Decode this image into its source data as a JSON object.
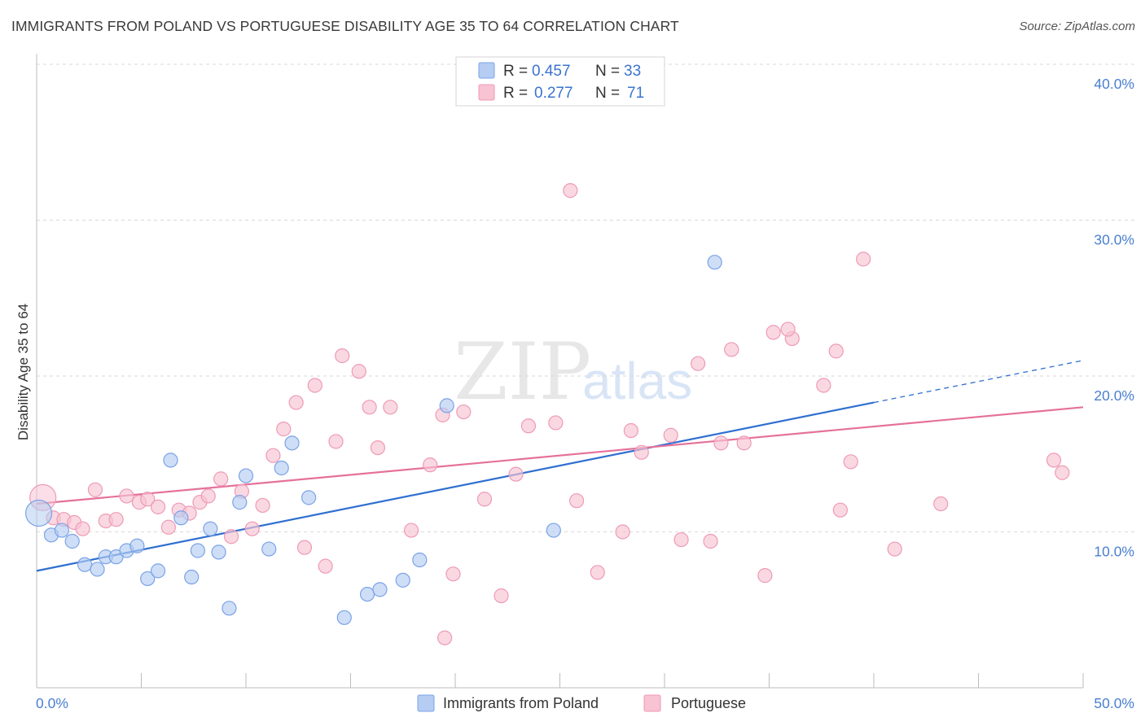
{
  "title": "IMMIGRANTS FROM POLAND VS PORTUGUESE DISABILITY AGE 35 TO 64 CORRELATION CHART",
  "source": "Source: ZipAtlas.com",
  "watermark": {
    "zip": "ZIP",
    "atlas": "atlas"
  },
  "legend": {
    "poland": {
      "r_label": "R = ",
      "r_value": "0.457",
      "n_label": "N = ",
      "n_value": "33"
    },
    "portuguese": {
      "r_label": "R = ",
      "r_value": "0.277",
      "n_label": "N = ",
      "n_value": "71"
    }
  },
  "colors": {
    "poland_fill": "#b5cdf3",
    "poland_stroke": "#7aa3e6",
    "poland_line": "#2f6fd0",
    "portuguese_fill": "#f8c3d3",
    "portuguese_stroke": "#ee9ab6",
    "portuguese_line": "#e5719a",
    "grid": "#d9d9d9",
    "axis_text": "#4a7fd0"
  },
  "chart_data": {
    "type": "scatter",
    "title": "IMMIGRANTS FROM POLAND VS PORTUGUESE DISABILITY AGE 35 TO 64 CORRELATION CHART",
    "xlabel": "",
    "ylabel": "Disability Age 35 to 64",
    "xlim": [
      0,
      50
    ],
    "ylim": [
      0,
      42
    ],
    "x_tick_labels": [
      "0.0%",
      "50.0%"
    ],
    "y_ticks": [
      10,
      20,
      30,
      40
    ],
    "y_tick_labels": [
      "10.0%",
      "20.0%",
      "30.0%",
      "40.0%"
    ],
    "grid": true,
    "legend_position": "top-center",
    "series": [
      {
        "name": "Immigrants from Poland",
        "r": 0.457,
        "n": 33,
        "trend": {
          "x": [
            0,
            40
          ],
          "y": [
            7.5,
            18.3
          ],
          "dashed_to": [
            50,
            21.0
          ]
        },
        "points": [
          {
            "x": 0.1,
            "y": 11.2,
            "big": true
          },
          {
            "x": 0.7,
            "y": 9.8
          },
          {
            "x": 1.2,
            "y": 10.1
          },
          {
            "x": 1.7,
            "y": 9.4
          },
          {
            "x": 2.3,
            "y": 7.9
          },
          {
            "x": 2.9,
            "y": 7.6
          },
          {
            "x": 3.3,
            "y": 8.4
          },
          {
            "x": 3.8,
            "y": 8.4
          },
          {
            "x": 4.3,
            "y": 8.8
          },
          {
            "x": 4.8,
            "y": 9.1
          },
          {
            "x": 5.3,
            "y": 7.0
          },
          {
            "x": 5.8,
            "y": 7.5
          },
          {
            "x": 6.4,
            "y": 14.6
          },
          {
            "x": 6.9,
            "y": 10.9
          },
          {
            "x": 7.4,
            "y": 7.1
          },
          {
            "x": 7.7,
            "y": 8.8
          },
          {
            "x": 8.3,
            "y": 10.2
          },
          {
            "x": 8.7,
            "y": 8.7
          },
          {
            "x": 9.2,
            "y": 5.1
          },
          {
            "x": 9.7,
            "y": 11.9
          },
          {
            "x": 10.0,
            "y": 13.6
          },
          {
            "x": 11.1,
            "y": 8.9
          },
          {
            "x": 11.7,
            "y": 14.1
          },
          {
            "x": 12.2,
            "y": 15.7
          },
          {
            "x": 13.0,
            "y": 12.2
          },
          {
            "x": 14.7,
            "y": 4.5
          },
          {
            "x": 15.8,
            "y": 6.0
          },
          {
            "x": 16.4,
            "y": 6.3
          },
          {
            "x": 17.5,
            "y": 6.9
          },
          {
            "x": 18.3,
            "y": 8.2
          },
          {
            "x": 19.6,
            "y": 18.1
          },
          {
            "x": 24.7,
            "y": 10.1
          },
          {
            "x": 32.4,
            "y": 27.3
          }
        ]
      },
      {
        "name": "Portuguese",
        "r": 0.277,
        "n": 71,
        "trend": {
          "x": [
            0,
            50
          ],
          "y": [
            11.8,
            18.0
          ]
        },
        "points": [
          {
            "x": 0.3,
            "y": 12.2,
            "big": true
          },
          {
            "x": 0.8,
            "y": 10.9
          },
          {
            "x": 1.3,
            "y": 10.8
          },
          {
            "x": 1.8,
            "y": 10.6
          },
          {
            "x": 2.2,
            "y": 10.2
          },
          {
            "x": 2.8,
            "y": 12.7
          },
          {
            "x": 3.3,
            "y": 10.7
          },
          {
            "x": 3.8,
            "y": 10.8
          },
          {
            "x": 4.3,
            "y": 12.3
          },
          {
            "x": 4.9,
            "y": 11.9
          },
          {
            "x": 5.3,
            "y": 12.1
          },
          {
            "x": 5.8,
            "y": 11.6
          },
          {
            "x": 6.3,
            "y": 10.3
          },
          {
            "x": 6.8,
            "y": 11.4
          },
          {
            "x": 7.3,
            "y": 11.2
          },
          {
            "x": 7.8,
            "y": 11.9
          },
          {
            "x": 8.2,
            "y": 12.3
          },
          {
            "x": 8.8,
            "y": 13.4
          },
          {
            "x": 9.3,
            "y": 9.7
          },
          {
            "x": 9.8,
            "y": 12.6
          },
          {
            "x": 10.3,
            "y": 10.2
          },
          {
            "x": 10.8,
            "y": 11.7
          },
          {
            "x": 11.3,
            "y": 14.9
          },
          {
            "x": 11.8,
            "y": 16.6
          },
          {
            "x": 12.4,
            "y": 18.3
          },
          {
            "x": 12.8,
            "y": 9.0
          },
          {
            "x": 13.3,
            "y": 19.4
          },
          {
            "x": 13.8,
            "y": 7.8
          },
          {
            "x": 14.3,
            "y": 15.8
          },
          {
            "x": 14.6,
            "y": 21.3
          },
          {
            "x": 15.4,
            "y": 20.3
          },
          {
            "x": 15.9,
            "y": 18.0
          },
          {
            "x": 16.3,
            "y": 15.4
          },
          {
            "x": 16.9,
            "y": 18.0
          },
          {
            "x": 17.9,
            "y": 10.1
          },
          {
            "x": 18.8,
            "y": 14.3
          },
          {
            "x": 19.4,
            "y": 17.5
          },
          {
            "x": 19.9,
            "y": 7.3
          },
          {
            "x": 20.4,
            "y": 17.7
          },
          {
            "x": 21.4,
            "y": 12.1
          },
          {
            "x": 22.2,
            "y": 5.9
          },
          {
            "x": 22.9,
            "y": 13.7
          },
          {
            "x": 25.5,
            "y": 31.9
          },
          {
            "x": 25.8,
            "y": 12.0
          },
          {
            "x": 24.8,
            "y": 17.0
          },
          {
            "x": 26.8,
            "y": 7.4
          },
          {
            "x": 28.0,
            "y": 10.0
          },
          {
            "x": 28.4,
            "y": 16.5
          },
          {
            "x": 28.9,
            "y": 15.1
          },
          {
            "x": 30.3,
            "y": 16.2
          },
          {
            "x": 30.8,
            "y": 9.5
          },
          {
            "x": 31.6,
            "y": 20.8
          },
          {
            "x": 32.2,
            "y": 9.4
          },
          {
            "x": 32.7,
            "y": 15.7
          },
          {
            "x": 33.2,
            "y": 21.7
          },
          {
            "x": 33.8,
            "y": 15.7
          },
          {
            "x": 34.8,
            "y": 7.2
          },
          {
            "x": 35.2,
            "y": 22.8
          },
          {
            "x": 36.1,
            "y": 22.4
          },
          {
            "x": 37.6,
            "y": 19.4
          },
          {
            "x": 38.2,
            "y": 21.6
          },
          {
            "x": 38.4,
            "y": 11.4
          },
          {
            "x": 38.9,
            "y": 14.5
          },
          {
            "x": 39.5,
            "y": 27.5
          },
          {
            "x": 41.0,
            "y": 8.9
          },
          {
            "x": 43.2,
            "y": 11.8
          },
          {
            "x": 48.6,
            "y": 14.6
          },
          {
            "x": 49.0,
            "y": 13.8
          },
          {
            "x": 19.5,
            "y": 3.2
          },
          {
            "x": 23.5,
            "y": 16.8
          },
          {
            "x": 35.9,
            "y": 23.0
          }
        ]
      }
    ]
  },
  "axis": {
    "ylabel": "Disability Age 35 to 64",
    "x_min_label": "0.0%",
    "x_max_label": "50.0%",
    "y_labels": [
      "10.0%",
      "20.0%",
      "30.0%",
      "40.0%"
    ]
  },
  "bottom_legend": {
    "poland": "Immigrants from Poland",
    "portuguese": "Portuguese"
  }
}
